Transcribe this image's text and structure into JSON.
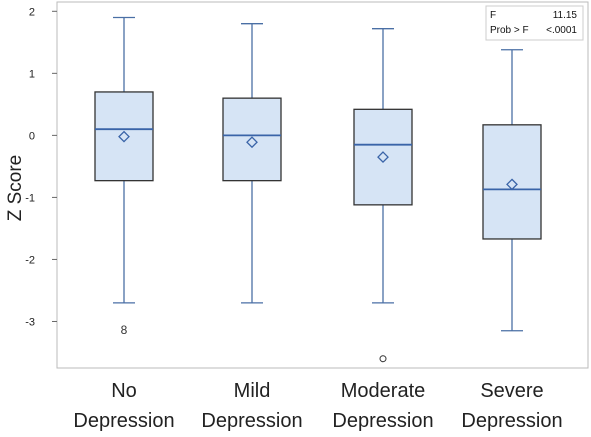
{
  "chart_data": {
    "type": "boxplot",
    "ylabel": "Z Score",
    "xlabel": "",
    "ylim": [
      -3.75,
      2.15
    ],
    "yticks": [
      -3,
      -2,
      -1,
      0,
      1,
      2
    ],
    "ytick_labels": [
      "-3",
      "-2",
      "-1",
      "0",
      "1",
      "2"
    ],
    "grid": false,
    "categories": [
      {
        "line1": "No",
        "line2": "Depression"
      },
      {
        "line1": "Mild",
        "line2": "Depression"
      },
      {
        "line1": "Moderate",
        "line2": "Depression"
      },
      {
        "line1": "Severe",
        "line2": "Depression"
      }
    ],
    "boxes": [
      {
        "whisker_low": -2.7,
        "q1": -0.73,
        "median": 0.1,
        "q3": 0.7,
        "whisker_high": 1.9,
        "mean": -0.02
      },
      {
        "whisker_low": -2.7,
        "q1": -0.73,
        "median": 0.0,
        "q3": 0.6,
        "whisker_high": 1.8,
        "mean": -0.11
      },
      {
        "whisker_low": -2.7,
        "q1": -1.12,
        "median": -0.15,
        "q3": 0.42,
        "whisker_high": 1.72,
        "mean": -0.35
      },
      {
        "whisker_low": -3.15,
        "q1": -1.67,
        "median": -0.87,
        "q3": 0.17,
        "whisker_high": 1.38,
        "mean": -0.79
      }
    ],
    "outliers": [
      {
        "category_index": 0,
        "y": -3.12,
        "marker": "8"
      },
      {
        "category_index": 2,
        "y": -3.6,
        "marker": "circle"
      }
    ],
    "stats": {
      "f_label": "F",
      "f_value": "11.15",
      "p_label": "Prob > F",
      "p_value": "<.0001"
    },
    "colors": {
      "box_fill": "#d6e4f5",
      "box_stroke": "#333333",
      "whisker": "#4a6fa5",
      "median": "#3a64a8",
      "mean_marker": "#3a64a8",
      "frame": "#bbbbbb"
    }
  }
}
